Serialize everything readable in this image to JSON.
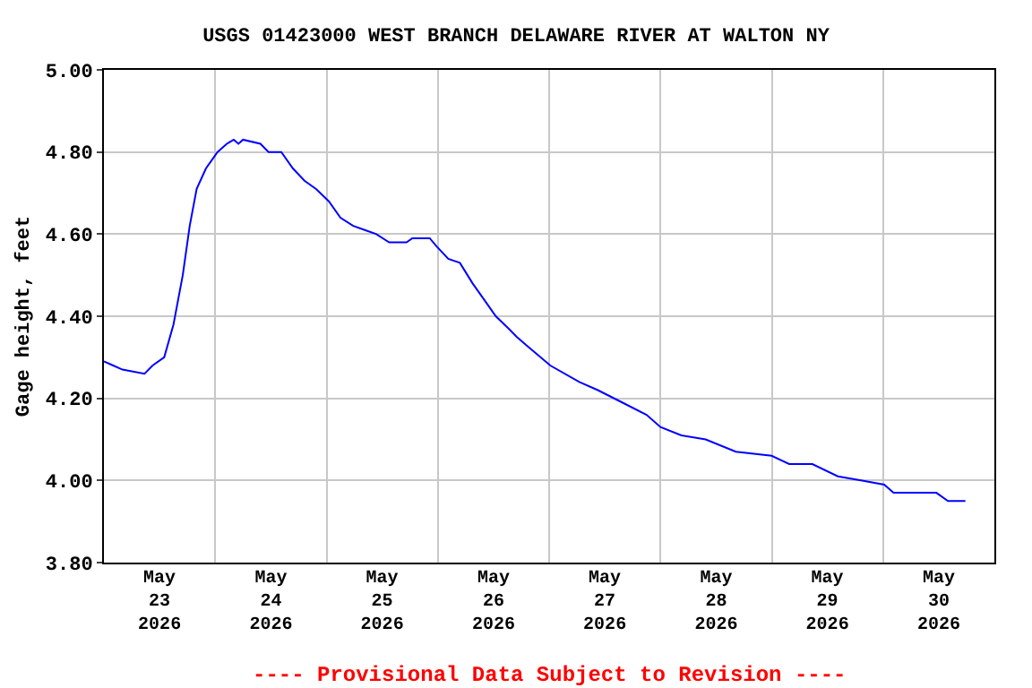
{
  "chart_data": {
    "type": "line",
    "title": "USGS 01423000 WEST BRANCH DELAWARE RIVER AT WALTON NY",
    "ylabel": "Gage height, feet",
    "annotations": [
      "---- Provisional Data Subject to Revision ----"
    ],
    "x": [
      "2026-05-23T00:00",
      "2026-05-23T02:00",
      "2026-05-23T04:00",
      "2026-05-23T08:45",
      "2026-05-23T10:30",
      "2026-05-23T13:00",
      "2026-05-23T15:00",
      "2026-05-23T17:00",
      "2026-05-23T18:30",
      "2026-05-23T20:00",
      "2026-05-23T22:00",
      "2026-05-23T23:15",
      "2026-05-24T00:30",
      "2026-05-24T02:30",
      "2026-05-24T04:00",
      "2026-05-24T05:00",
      "2026-05-24T06:00",
      "2026-05-24T09:45",
      "2026-05-24T11:30",
      "2026-05-24T14:15",
      "2026-05-24T16:45",
      "2026-05-24T19:15",
      "2026-05-24T21:45",
      "2026-05-25T00:30",
      "2026-05-25T03:00",
      "2026-05-25T05:45",
      "2026-05-25T08:15",
      "2026-05-25T10:45",
      "2026-05-25T13:30",
      "2026-05-25T17:15",
      "2026-05-25T18:30",
      "2026-05-25T22:15",
      "2026-05-25T23:45",
      "2026-05-26T02:15",
      "2026-05-26T04:45",
      "2026-05-26T07:30",
      "2026-05-26T10:00",
      "2026-05-26T12:30",
      "2026-05-26T15:15",
      "2026-05-26T17:00",
      "2026-05-26T19:00",
      "2026-05-27T00:15",
      "2026-05-27T06:30",
      "2026-05-27T10:30",
      "2026-05-27T15:45",
      "2026-05-27T21:00",
      "2026-05-28T00:00",
      "2026-05-28T04:30",
      "2026-05-28T09:45",
      "2026-05-28T16:15",
      "2026-05-29T00:00",
      "2026-05-29T03:45",
      "2026-05-29T08:45",
      "2026-05-29T14:15",
      "2026-05-29T19:15",
      "2026-05-30T00:15",
      "2026-05-30T02:15",
      "2026-05-30T11:30",
      "2026-05-30T14:00",
      "2026-05-30T17:45"
    ],
    "series": [
      {
        "color": "#0000ff",
        "values": [
          4.29,
          4.28,
          4.27,
          4.26,
          4.28,
          4.3,
          4.38,
          4.5,
          4.62,
          4.71,
          4.76,
          4.78,
          4.8,
          4.82,
          4.83,
          4.82,
          4.83,
          4.82,
          4.8,
          4.8,
          4.76,
          4.73,
          4.71,
          4.68,
          4.64,
          4.62,
          4.61,
          4.6,
          4.58,
          4.58,
          4.59,
          4.59,
          4.57,
          4.54,
          4.53,
          4.48,
          4.44,
          4.4,
          4.37,
          4.35,
          4.33,
          4.28,
          4.24,
          4.22,
          4.19,
          4.16,
          4.13,
          4.11,
          4.1,
          4.07,
          4.06,
          4.04,
          4.04,
          4.01,
          4.0,
          3.99,
          3.97,
          3.97,
          3.95,
          3.95
        ]
      }
    ],
    "xlim": [
      "2026-05-23T00:00",
      "2026-05-31T00:00"
    ],
    "xticks": [
      {
        "value": "2026-05-23T12:00",
        "label": "May\n23\n2026"
      },
      {
        "value": "2026-05-24T00:00",
        "label": null
      },
      {
        "value": "2026-05-24T12:00",
        "label": "May\n24\n2026"
      },
      {
        "value": "2026-05-25T00:00",
        "label": null
      },
      {
        "value": "2026-05-25T12:00",
        "label": "May\n25\n2026"
      },
      {
        "value": "2026-05-26T00:00",
        "label": null
      },
      {
        "value": "2026-05-26T12:00",
        "label": "May\n26\n2026"
      },
      {
        "value": "2026-05-27T00:00",
        "label": null
      },
      {
        "value": "2026-05-27T12:00",
        "label": "May\n27\n2026"
      },
      {
        "value": "2026-05-28T00:00",
        "label": null
      },
      {
        "value": "2026-05-28T12:00",
        "label": "May\n28\n2026"
      },
      {
        "value": "2026-05-29T00:00",
        "label": null
      },
      {
        "value": "2026-05-29T12:00",
        "label": "May\n29\n2026"
      },
      {
        "value": "2026-05-30T00:00",
        "label": null
      },
      {
        "value": "2026-05-30T12:00",
        "label": "May\n30\n2026"
      }
    ],
    "ylim": [
      3.8,
      5.0
    ],
    "yticks": [
      {
        "value": 3.8,
        "label": "3.80"
      },
      {
        "value": 4.0,
        "label": "4.00"
      },
      {
        "value": 4.2,
        "label": "4.20"
      },
      {
        "value": 4.4,
        "label": "4.40"
      },
      {
        "value": 4.6,
        "label": "4.60"
      },
      {
        "value": 4.8,
        "label": "4.80"
      },
      {
        "value": 5.0,
        "label": "5.00"
      }
    ],
    "grid": true
  }
}
